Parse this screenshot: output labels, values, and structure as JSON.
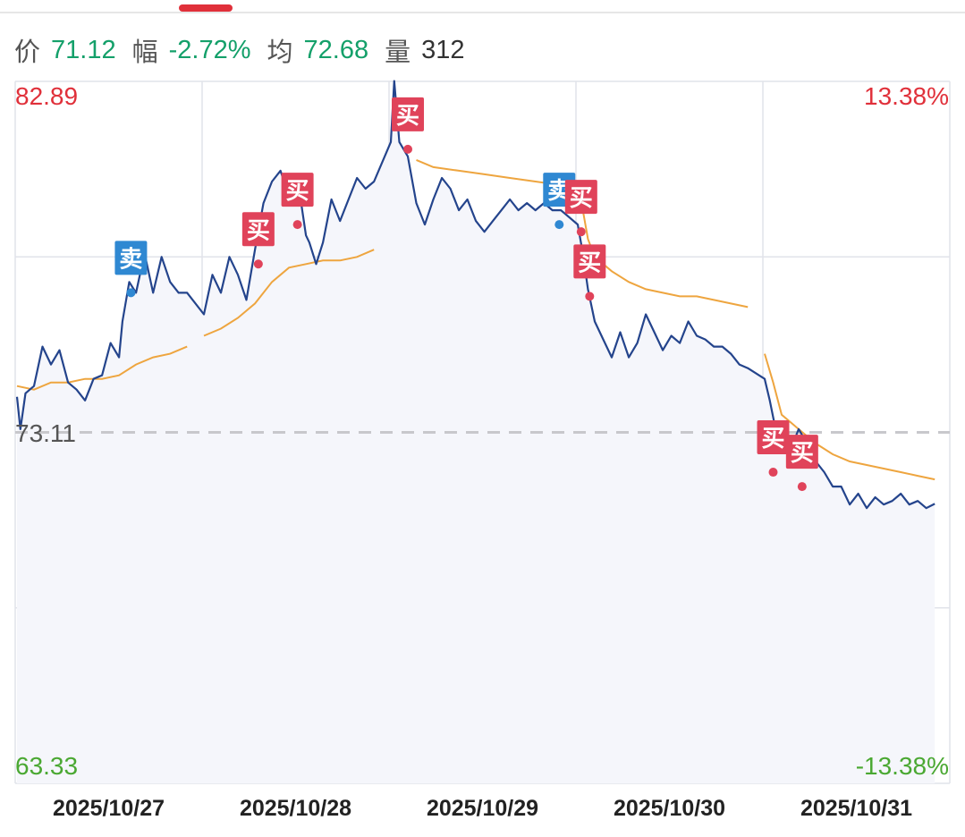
{
  "header": {
    "price_label": "价",
    "price_value": "71.12",
    "change_label": "幅",
    "change_value": "-2.72%",
    "avg_label": "均",
    "avg_value": "72.68",
    "volume_label": "量",
    "volume_value": "312"
  },
  "colors": {
    "price_line": "#24448c",
    "avg_line": "#eea53f",
    "buy_marker": "#e0435a",
    "sell_marker": "#2f88d2",
    "up_text": "#e0303a",
    "down_text": "#4aa832",
    "area_fill": "#f5f6fb",
    "grid": "#e1e3ea",
    "baseline": "#c8c8cc"
  },
  "chart_data": {
    "type": "line",
    "ylim": [
      63.33,
      82.89
    ],
    "y_tick_labels": {
      "top": "82.89",
      "base": "73.11",
      "bottom": "63.33"
    },
    "pct_tick_labels": {
      "top": "13.38%",
      "bottom": "-13.38%"
    },
    "base_price": 73.11,
    "days": [
      "2025/10/27",
      "2025/10/28",
      "2025/10/29",
      "2025/10/30",
      "2025/10/31"
    ],
    "price_series": {
      "2025/10/27": [
        [
          0,
          74.1
        ],
        [
          0.02,
          73.2
        ],
        [
          0.05,
          74.2
        ],
        [
          0.1,
          74.4
        ],
        [
          0.15,
          75.5
        ],
        [
          0.2,
          75.0
        ],
        [
          0.25,
          75.4
        ],
        [
          0.3,
          74.5
        ],
        [
          0.35,
          74.3
        ],
        [
          0.4,
          74.0
        ],
        [
          0.45,
          74.6
        ],
        [
          0.5,
          74.7
        ],
        [
          0.55,
          75.6
        ],
        [
          0.6,
          75.2
        ],
        [
          0.62,
          76.2
        ],
        [
          0.66,
          77.3
        ],
        [
          0.7,
          77.0
        ],
        [
          0.75,
          78.1
        ],
        [
          0.8,
          77.0
        ],
        [
          0.85,
          78.0
        ],
        [
          0.9,
          77.3
        ],
        [
          0.95,
          77.0
        ],
        [
          1.0,
          77.0
        ]
      ],
      "2025/10/28": [
        [
          0,
          76.4
        ],
        [
          0.05,
          77.5
        ],
        [
          0.1,
          77.0
        ],
        [
          0.15,
          78.0
        ],
        [
          0.2,
          77.5
        ],
        [
          0.25,
          76.8
        ],
        [
          0.3,
          78.2
        ],
        [
          0.35,
          79.5
        ],
        [
          0.4,
          80.1
        ],
        [
          0.45,
          80.4
        ],
        [
          0.5,
          79.7
        ],
        [
          0.55,
          80.2
        ],
        [
          0.6,
          78.6
        ],
        [
          0.62,
          78.4
        ],
        [
          0.66,
          77.8
        ],
        [
          0.7,
          78.4
        ],
        [
          0.75,
          79.6
        ],
        [
          0.8,
          79.0
        ],
        [
          0.85,
          79.6
        ],
        [
          0.9,
          80.2
        ],
        [
          0.95,
          79.9
        ],
        [
          1.0,
          80.1
        ]
      ],
      "2025/10/29": [
        [
          0,
          81.2
        ],
        [
          0.02,
          82.9
        ],
        [
          0.05,
          81.2
        ],
        [
          0.1,
          80.8
        ],
        [
          0.15,
          79.5
        ],
        [
          0.2,
          78.9
        ],
        [
          0.25,
          79.6
        ],
        [
          0.3,
          80.2
        ],
        [
          0.35,
          79.9
        ],
        [
          0.4,
          79.3
        ],
        [
          0.45,
          79.6
        ],
        [
          0.5,
          79.0
        ],
        [
          0.55,
          78.7
        ],
        [
          0.6,
          79.0
        ],
        [
          0.65,
          79.3
        ],
        [
          0.7,
          79.6
        ],
        [
          0.75,
          79.3
        ],
        [
          0.8,
          79.5
        ],
        [
          0.85,
          79.3
        ],
        [
          0.9,
          79.5
        ],
        [
          0.95,
          79.3
        ],
        [
          1.0,
          79.3
        ]
      ],
      "2025/10/30": [
        [
          0,
          78.9
        ],
        [
          0.03,
          78.1
        ],
        [
          0.06,
          77.1
        ],
        [
          0.1,
          76.2
        ],
        [
          0.15,
          75.7
        ],
        [
          0.2,
          75.2
        ],
        [
          0.25,
          75.9
        ],
        [
          0.3,
          75.2
        ],
        [
          0.35,
          75.6
        ],
        [
          0.4,
          76.4
        ],
        [
          0.45,
          75.9
        ],
        [
          0.5,
          75.4
        ],
        [
          0.55,
          75.8
        ],
        [
          0.6,
          75.6
        ],
        [
          0.65,
          76.2
        ],
        [
          0.7,
          75.8
        ],
        [
          0.75,
          75.7
        ],
        [
          0.8,
          75.5
        ],
        [
          0.85,
          75.5
        ],
        [
          0.9,
          75.3
        ],
        [
          0.95,
          75.0
        ],
        [
          1.0,
          74.9
        ]
      ],
      "2025/10/31": [
        [
          0,
          74.6
        ],
        [
          0.03,
          74.0
        ],
        [
          0.06,
          73.3
        ],
        [
          0.1,
          72.9
        ],
        [
          0.15,
          72.6
        ],
        [
          0.2,
          73.2
        ],
        [
          0.25,
          72.8
        ],
        [
          0.3,
          72.3
        ],
        [
          0.35,
          72.0
        ],
        [
          0.4,
          71.6
        ],
        [
          0.45,
          71.6
        ],
        [
          0.5,
          71.1
        ],
        [
          0.55,
          71.4
        ],
        [
          0.6,
          71.0
        ],
        [
          0.65,
          71.3
        ],
        [
          0.7,
          71.1
        ],
        [
          0.75,
          71.2
        ],
        [
          0.8,
          71.4
        ],
        [
          0.85,
          71.1
        ],
        [
          0.9,
          71.2
        ],
        [
          0.95,
          71.0
        ],
        [
          1.0,
          71.12
        ]
      ]
    },
    "avg_series": {
      "2025/10/27": [
        [
          0,
          74.4
        ],
        [
          0.1,
          74.3
        ],
        [
          0.2,
          74.5
        ],
        [
          0.3,
          74.5
        ],
        [
          0.4,
          74.6
        ],
        [
          0.5,
          74.6
        ],
        [
          0.6,
          74.7
        ],
        [
          0.7,
          75.0
        ],
        [
          0.8,
          75.2
        ],
        [
          0.9,
          75.3
        ],
        [
          1.0,
          75.5
        ]
      ],
      "2025/10/28": [
        [
          0,
          75.8
        ],
        [
          0.1,
          76.0
        ],
        [
          0.2,
          76.3
        ],
        [
          0.3,
          76.7
        ],
        [
          0.4,
          77.3
        ],
        [
          0.5,
          77.7
        ],
        [
          0.6,
          77.8
        ],
        [
          0.7,
          77.9
        ],
        [
          0.8,
          77.9
        ],
        [
          0.9,
          78.0
        ],
        [
          1.0,
          78.2
        ]
      ],
      "2025/10/29": [
        [
          0.15,
          80.7
        ],
        [
          0.25,
          80.5
        ],
        [
          0.4,
          80.4
        ],
        [
          0.55,
          80.3
        ],
        [
          0.7,
          80.2
        ],
        [
          0.85,
          80.1
        ],
        [
          1.0,
          80.0
        ]
      ],
      "2025/10/30": [
        [
          0,
          79.9
        ],
        [
          0.03,
          79.3
        ],
        [
          0.06,
          78.5
        ],
        [
          0.1,
          78.0
        ],
        [
          0.2,
          77.6
        ],
        [
          0.3,
          77.3
        ],
        [
          0.4,
          77.1
        ],
        [
          0.5,
          77.0
        ],
        [
          0.6,
          76.9
        ],
        [
          0.7,
          76.9
        ],
        [
          0.8,
          76.8
        ],
        [
          0.9,
          76.7
        ],
        [
          1.0,
          76.6
        ]
      ],
      "2025/10/31": [
        [
          0,
          75.3
        ],
        [
          0.05,
          74.5
        ],
        [
          0.1,
          73.6
        ],
        [
          0.2,
          73.2
        ],
        [
          0.3,
          72.8
        ],
        [
          0.4,
          72.5
        ],
        [
          0.5,
          72.3
        ],
        [
          0.6,
          72.2
        ],
        [
          0.7,
          72.1
        ],
        [
          0.8,
          72.0
        ],
        [
          0.9,
          71.9
        ],
        [
          1.0,
          71.8
        ]
      ]
    },
    "markers": [
      {
        "type": "sell",
        "label": "卖",
        "day": "2025/10/27",
        "t": 0.67,
        "price": 77.0
      },
      {
        "type": "buy",
        "label": "买",
        "day": "2025/10/28",
        "t": 0.32,
        "price": 77.8
      },
      {
        "type": "buy",
        "label": "买",
        "day": "2025/10/28",
        "t": 0.55,
        "price": 78.9
      },
      {
        "type": "buy",
        "label": "买",
        "day": "2025/10/29",
        "t": 0.1,
        "price": 81.0
      },
      {
        "type": "sell",
        "label": "卖",
        "day": "2025/10/29",
        "t": 0.99,
        "price": 78.9
      },
      {
        "type": "buy",
        "label": "买",
        "day": "2025/10/30",
        "t": 0.02,
        "price": 78.7
      },
      {
        "type": "buy",
        "label": "买",
        "day": "2025/10/30",
        "t": 0.07,
        "price": 76.9
      },
      {
        "type": "buy",
        "label": "买",
        "day": "2025/10/31",
        "t": 0.05,
        "price": 72.0
      },
      {
        "type": "buy",
        "label": "买",
        "day": "2025/10/31",
        "t": 0.22,
        "price": 71.6
      }
    ]
  }
}
